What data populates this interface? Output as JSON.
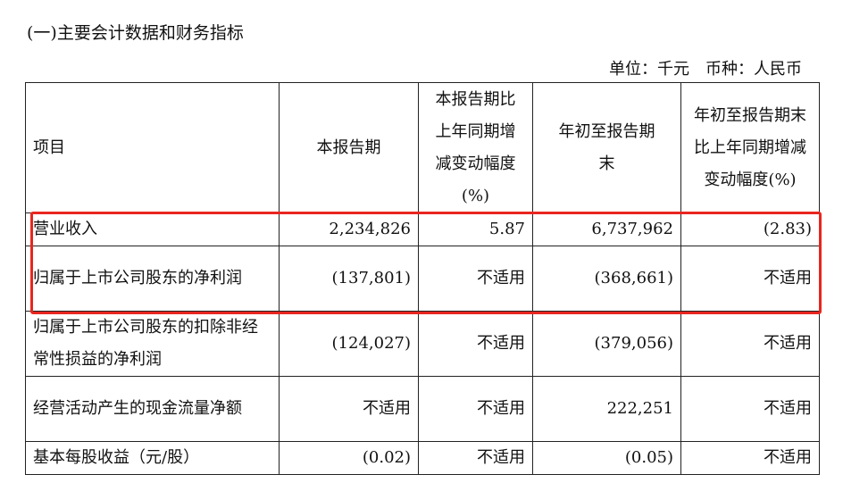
{
  "section_title": "(一)主要会计数据和财务指标",
  "unit_note": "单位：千元　币种：人民币",
  "highlight_color": "#e8261f",
  "table": {
    "headers": [
      "项目",
      "本报告期",
      "本报告期比上年同期增减变动幅度(%)",
      "年初至报告期末",
      "年初至报告期末比上年同期增减变动幅度(%)"
    ],
    "rows": [
      [
        "营业收入",
        "2,234,826",
        "5.87",
        "6,737,962",
        "(2.83)"
      ],
      [
        "归属于上市公司股东的净利润",
        "(137,801)",
        "不适用",
        "(368,661)",
        "不适用"
      ],
      [
        "归属于上市公司股东的扣除非经常性损益的净利润",
        "(124,027)",
        "不适用",
        "(379,056)",
        "不适用"
      ],
      [
        "经营活动产生的现金流量净额",
        "不适用",
        "不适用",
        "222,251",
        "不适用"
      ],
      [
        "基本每股收益（元/股）",
        "(0.02)",
        "不适用",
        "(0.05)",
        "不适用"
      ]
    ],
    "highlighted_rows": [
      0,
      1
    ]
  }
}
